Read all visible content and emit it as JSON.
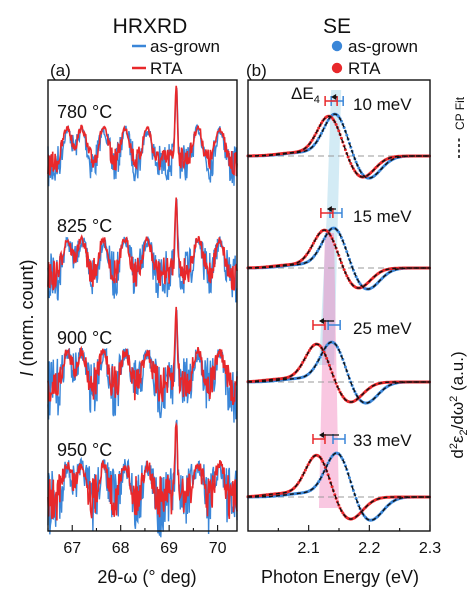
{
  "chart_data": [
    {
      "type": "line",
      "panel_label": "(a)",
      "title": "HRXRD",
      "xlabel": "2θ-ω (° deg)",
      "ylabel": "I (norm. count)",
      "xlim": [
        66.5,
        70.4
      ],
      "x_ticks": [
        67,
        68,
        69,
        70
      ],
      "x_tick_labels": [
        "67",
        "68",
        "69",
        "70"
      ],
      "y_scale": "stacked, normalized (no numeric ticks)",
      "legend": {
        "placement": "top",
        "entries": [
          {
            "label": "as-grown",
            "color": "#3a86d8",
            "style": "line"
          },
          {
            "label": "RTA",
            "color": "#e8282b",
            "style": "line"
          }
        ]
      },
      "annealing_labels": [
        "780 °C",
        "825 °C",
        "900 °C",
        "950 °C"
      ],
      "main_peak_position_deg": 69.15,
      "fringe_positions_deg": [
        66.9,
        67.2,
        67.65,
        68.1,
        68.55,
        69.15,
        69.6,
        70.05
      ]
    },
    {
      "type": "line",
      "panel_label": "(b)",
      "title": "SE",
      "xlabel": "Photon Energy (eV)",
      "ylabel": "d²ε₂/dω² (a.u.)",
      "xlim": [
        2.0,
        2.3
      ],
      "x_ticks": [
        2.1,
        2.2,
        2.3
      ],
      "x_tick_labels": [
        "2.1",
        "2.2",
        "2.3"
      ],
      "legend": {
        "placement": "top",
        "entries": [
          {
            "label": "as-grown",
            "color": "#3a86d8",
            "style": "marker"
          },
          {
            "label": "RTA",
            "color": "#e8282b",
            "style": "marker"
          },
          {
            "label": "CP Fit",
            "color": "#111111",
            "style": "dashed"
          }
        ]
      },
      "delta_label": "ΔE",
      "delta_subscript": "4",
      "series": [
        {
          "name": "780 °C",
          "shift_label": "10 meV",
          "peak_as_grown_eV": 2.147,
          "peak_rta_eV": 2.137
        },
        {
          "name": "825 °C",
          "shift_label": "15 meV",
          "peak_as_grown_eV": 2.145,
          "peak_rta_eV": 2.13
        },
        {
          "name": "900 °C",
          "shift_label": "25 meV",
          "peak_as_grown_eV": 2.142,
          "peak_rta_eV": 2.117
        },
        {
          "name": "950 °C",
          "shift_label": "33 meV",
          "peak_as_grown_eV": 2.15,
          "peak_rta_eV": 2.117
        }
      ]
    }
  ],
  "colors": {
    "as_grown": "#3a86d8",
    "rta": "#e8282b",
    "fit": "#111111",
    "shade_blue": "#9ed2e8",
    "shade_pink": "#f06bb0",
    "baseline": "#9a9a9a"
  }
}
